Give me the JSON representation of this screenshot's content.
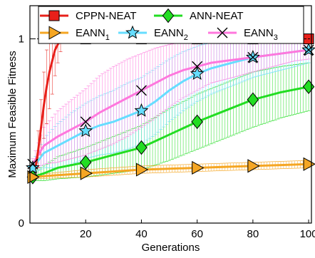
{
  "chart_data": {
    "type": "line",
    "xlabel": "Generations",
    "ylabel": "Maximum Feasible Fitness",
    "xlim": [
      0,
      101
    ],
    "ylim": [
      0,
      1.18
    ],
    "xticks": [
      20,
      40,
      60,
      80,
      100
    ],
    "yticks": [
      0,
      1
    ],
    "reference_line": 1.0,
    "grid": false,
    "legend_placement": "top",
    "series": [
      {
        "name": "CPPN-NEAT",
        "color": "#e8201a",
        "marker": "square",
        "x": [
          1,
          2,
          3,
          4,
          5,
          6,
          7,
          8,
          9,
          10,
          11,
          12,
          20,
          40,
          60,
          80,
          100
        ],
        "y": [
          0.26,
          0.3,
          0.4,
          0.52,
          0.64,
          0.74,
          0.82,
          0.88,
          0.94,
          0.97,
          0.99,
          1.0,
          1.0,
          1.0,
          1.0,
          1.0,
          1.0
        ],
        "err": [
          0.0,
          0.04,
          0.1,
          0.15,
          0.18,
          0.2,
          0.2,
          0.18,
          0.14,
          0.1,
          0.06,
          0.0,
          0.0,
          0.0,
          0.0,
          0.0,
          0.0
        ],
        "marker_x": [
          20,
          40,
          60,
          80,
          100
        ]
      },
      {
        "name": "ANN-NEAT",
        "color": "#22dd22",
        "marker": "diamond",
        "x": [
          1,
          5,
          10,
          20,
          30,
          40,
          50,
          60,
          70,
          80,
          90,
          100
        ],
        "y": [
          0.25,
          0.27,
          0.3,
          0.33,
          0.37,
          0.41,
          0.48,
          0.55,
          0.61,
          0.67,
          0.71,
          0.74
        ],
        "err": [
          0.02,
          0.04,
          0.06,
          0.08,
          0.1,
          0.12,
          0.14,
          0.15,
          0.15,
          0.15,
          0.14,
          0.13
        ],
        "marker_x": [
          1,
          20,
          40,
          60,
          80,
          100
        ]
      },
      {
        "name": "EANN1",
        "name_main": "EANN",
        "name_sub": "1",
        "color": "#f5a623",
        "marker": "triangle-right",
        "x": [
          1,
          10,
          20,
          30,
          40,
          50,
          60,
          70,
          80,
          90,
          100
        ],
        "y": [
          0.25,
          0.26,
          0.27,
          0.28,
          0.29,
          0.295,
          0.3,
          0.305,
          0.31,
          0.315,
          0.32
        ],
        "err": [
          0.01,
          0.015,
          0.02,
          0.02,
          0.02,
          0.02,
          0.02,
          0.02,
          0.02,
          0.02,
          0.02
        ],
        "marker_x": [
          1,
          20,
          40,
          60,
          80,
          100
        ]
      },
      {
        "name": "EANN2",
        "name_main": "EANN",
        "name_sub": "2",
        "color": "#66ddff",
        "marker": "star",
        "x": [
          1,
          5,
          10,
          15,
          20,
          25,
          30,
          35,
          40,
          45,
          50,
          55,
          60,
          65,
          70,
          75,
          80,
          85,
          90,
          95,
          100
        ],
        "y": [
          0.3,
          0.38,
          0.42,
          0.46,
          0.5,
          0.53,
          0.55,
          0.58,
          0.61,
          0.66,
          0.72,
          0.77,
          0.81,
          0.84,
          0.86,
          0.88,
          0.9,
          0.91,
          0.92,
          0.93,
          0.94
        ],
        "err": [
          0.03,
          0.08,
          0.12,
          0.14,
          0.15,
          0.16,
          0.17,
          0.18,
          0.18,
          0.18,
          0.17,
          0.16,
          0.15,
          0.14,
          0.13,
          0.12,
          0.11,
          0.1,
          0.09,
          0.08,
          0.07
        ],
        "marker_x": [
          1,
          20,
          40,
          60,
          80,
          100
        ]
      },
      {
        "name": "EANN3",
        "name_main": "EANN",
        "name_sub": "3",
        "color": "#ff77dd",
        "marker": "x",
        "x": [
          1,
          5,
          10,
          15,
          20,
          25,
          30,
          35,
          40,
          45,
          50,
          55,
          60,
          65,
          70,
          75,
          80,
          85,
          90,
          95,
          100
        ],
        "y": [
          0.32,
          0.42,
          0.47,
          0.51,
          0.55,
          0.6,
          0.64,
          0.68,
          0.72,
          0.76,
          0.8,
          0.83,
          0.85,
          0.87,
          0.88,
          0.89,
          0.9,
          0.91,
          0.92,
          0.93,
          0.94
        ],
        "err": [
          0.03,
          0.1,
          0.14,
          0.16,
          0.18,
          0.2,
          0.21,
          0.21,
          0.2,
          0.19,
          0.17,
          0.15,
          0.13,
          0.11,
          0.1,
          0.09,
          0.08,
          0.07,
          0.06,
          0.05,
          0.05
        ],
        "marker_x": [
          1,
          20,
          40,
          60,
          80,
          100
        ]
      }
    ]
  }
}
